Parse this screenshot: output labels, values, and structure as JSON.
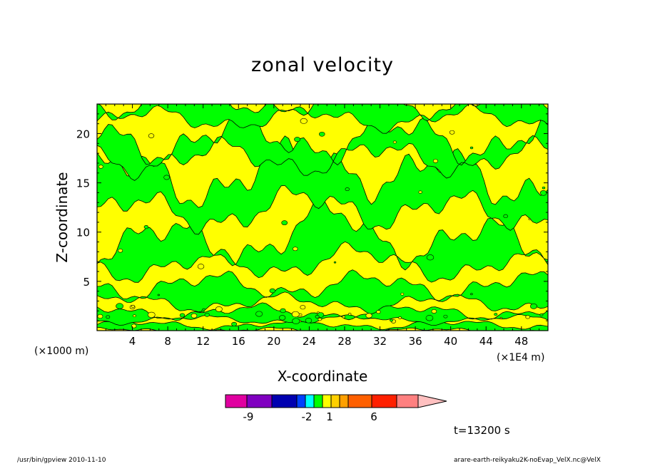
{
  "chart_data": {
    "type": "heatmap",
    "title": "zonal velocity",
    "xlabel": "X-coordinate",
    "ylabel": "Z-coordinate",
    "x_unit": "(×1000 m)",
    "x_unit_right": "(×1E4 m)",
    "xlim": [
      0,
      51
    ],
    "ylim": [
      0,
      23
    ],
    "x_ticks": [
      4,
      8,
      12,
      16,
      20,
      24,
      28,
      32,
      36,
      40,
      44,
      48
    ],
    "y_ticks": [
      5,
      10,
      15,
      20
    ],
    "x_tick_labels": [
      "4",
      "8",
      "12",
      "16",
      "20",
      "24",
      "28",
      "32",
      "36",
      "40",
      "44",
      "48"
    ],
    "y_tick_labels": [
      "5",
      "10",
      "15",
      "20"
    ],
    "field_levels": {
      "lower_band_value": 1,
      "upper_band_value": 0
    },
    "field_colors": {
      "green": "#00ff00",
      "yellow": "#ffff00",
      "contour": "#000000"
    },
    "colorbar": {
      "colors": [
        "#e000a0",
        "#8000c0",
        "#0000b0",
        "#0040ff",
        "#00ffff",
        "#00ff00",
        "#ffff00",
        "#ffd000",
        "#ffa000",
        "#ff6000",
        "#ff2000",
        "#ff8080",
        "#ffc0c0"
      ],
      "labels": [
        "-9",
        "-2",
        "1",
        "6"
      ],
      "label_levels": [
        -9,
        -2,
        1,
        6
      ]
    },
    "time_label": "t=13200 s"
  },
  "footer": {
    "left": "/usr/bin/gpview  2010-11-10",
    "right": "arare-earth-reikyaku2K-noEvap_VelX.nc@VelX"
  }
}
